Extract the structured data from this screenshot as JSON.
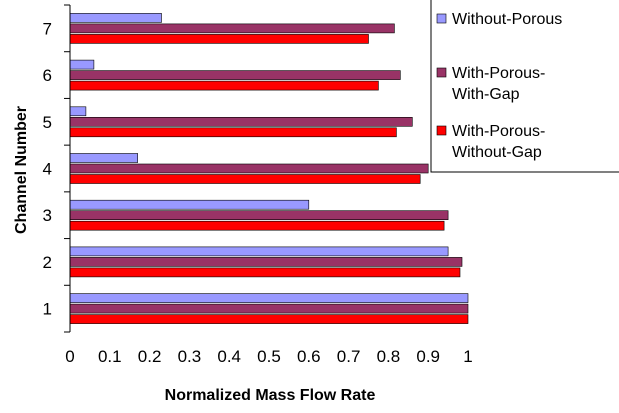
{
  "chart_data": {
    "type": "bar",
    "orientation": "horizontal",
    "categories": [
      "1",
      "2",
      "3",
      "4",
      "5",
      "6",
      "7"
    ],
    "series": [
      {
        "name": "Without-Porous",
        "color": "#9999ff",
        "values": [
          1.0,
          0.95,
          0.6,
          0.17,
          0.04,
          0.06,
          0.23
        ]
      },
      {
        "name": "With-Porous-With-Gap",
        "color": "#993366",
        "values": [
          1.0,
          0.985,
          0.95,
          0.9,
          0.86,
          0.83,
          0.815
        ]
      },
      {
        "name": "With-Porous-Without-Gap",
        "color": "#ff0000",
        "values": [
          1.0,
          0.98,
          0.94,
          0.88,
          0.82,
          0.775,
          0.75
        ]
      }
    ],
    "legend_labels": [
      [
        "Without-Porous"
      ],
      [
        "With-Porous-",
        "With-Gap"
      ],
      [
        "With-Porous-",
        "Without-Gap"
      ]
    ],
    "xticks": [
      "0",
      "0.1",
      "0.2",
      "0.3",
      "0.4",
      "0.5",
      "0.6",
      "0.7",
      "0.8",
      "0.9",
      "1"
    ],
    "xlim": [
      0,
      1
    ],
    "xlabel": "Normalized Mass Flow Rate",
    "ylabel": "Channel Number",
    "grid": false,
    "legend_position": "top-right"
  }
}
